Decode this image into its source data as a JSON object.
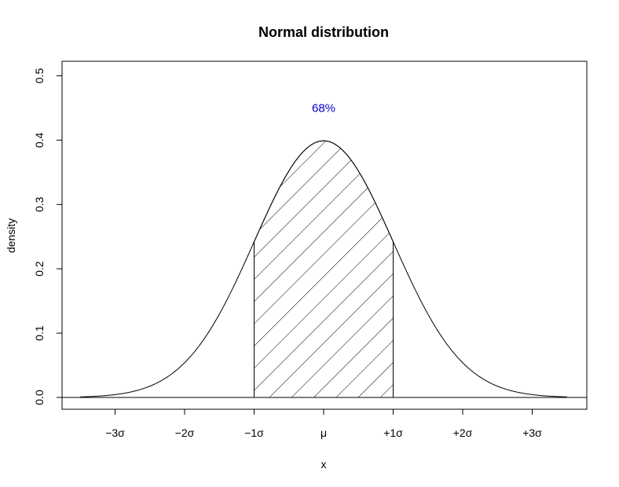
{
  "chart_data": {
    "type": "area",
    "title": "Normal distribution",
    "xlabel": "x",
    "ylabel": "density",
    "xlim": [
      -3.5,
      3.5
    ],
    "ylim": [
      0,
      0.5
    ],
    "mean": 0,
    "sd": 1,
    "x_ticks": [
      {
        "value": -3,
        "label": "−3σ"
      },
      {
        "value": -2,
        "label": "−2σ"
      },
      {
        "value": -1,
        "label": "−1σ"
      },
      {
        "value": 0,
        "label": "μ"
      },
      {
        "value": 1,
        "label": "+1σ"
      },
      {
        "value": 2,
        "label": "+2σ"
      },
      {
        "value": 3,
        "label": "+3σ"
      }
    ],
    "y_ticks": [
      {
        "value": 0.0,
        "label": "0.0"
      },
      {
        "value": 0.1,
        "label": "0.1"
      },
      {
        "value": 0.2,
        "label": "0.2"
      },
      {
        "value": 0.3,
        "label": "0.3"
      },
      {
        "value": 0.4,
        "label": "0.4"
      },
      {
        "value": 0.5,
        "label": "0.5"
      }
    ],
    "shaded_region": {
      "from": -1,
      "to": 1,
      "pattern": "hatched"
    },
    "baseline": 0,
    "annotations": [
      {
        "text": "68%",
        "x": 0,
        "y": 0.45,
        "color": "#0000cc"
      }
    ],
    "curve_color": "#000000"
  }
}
